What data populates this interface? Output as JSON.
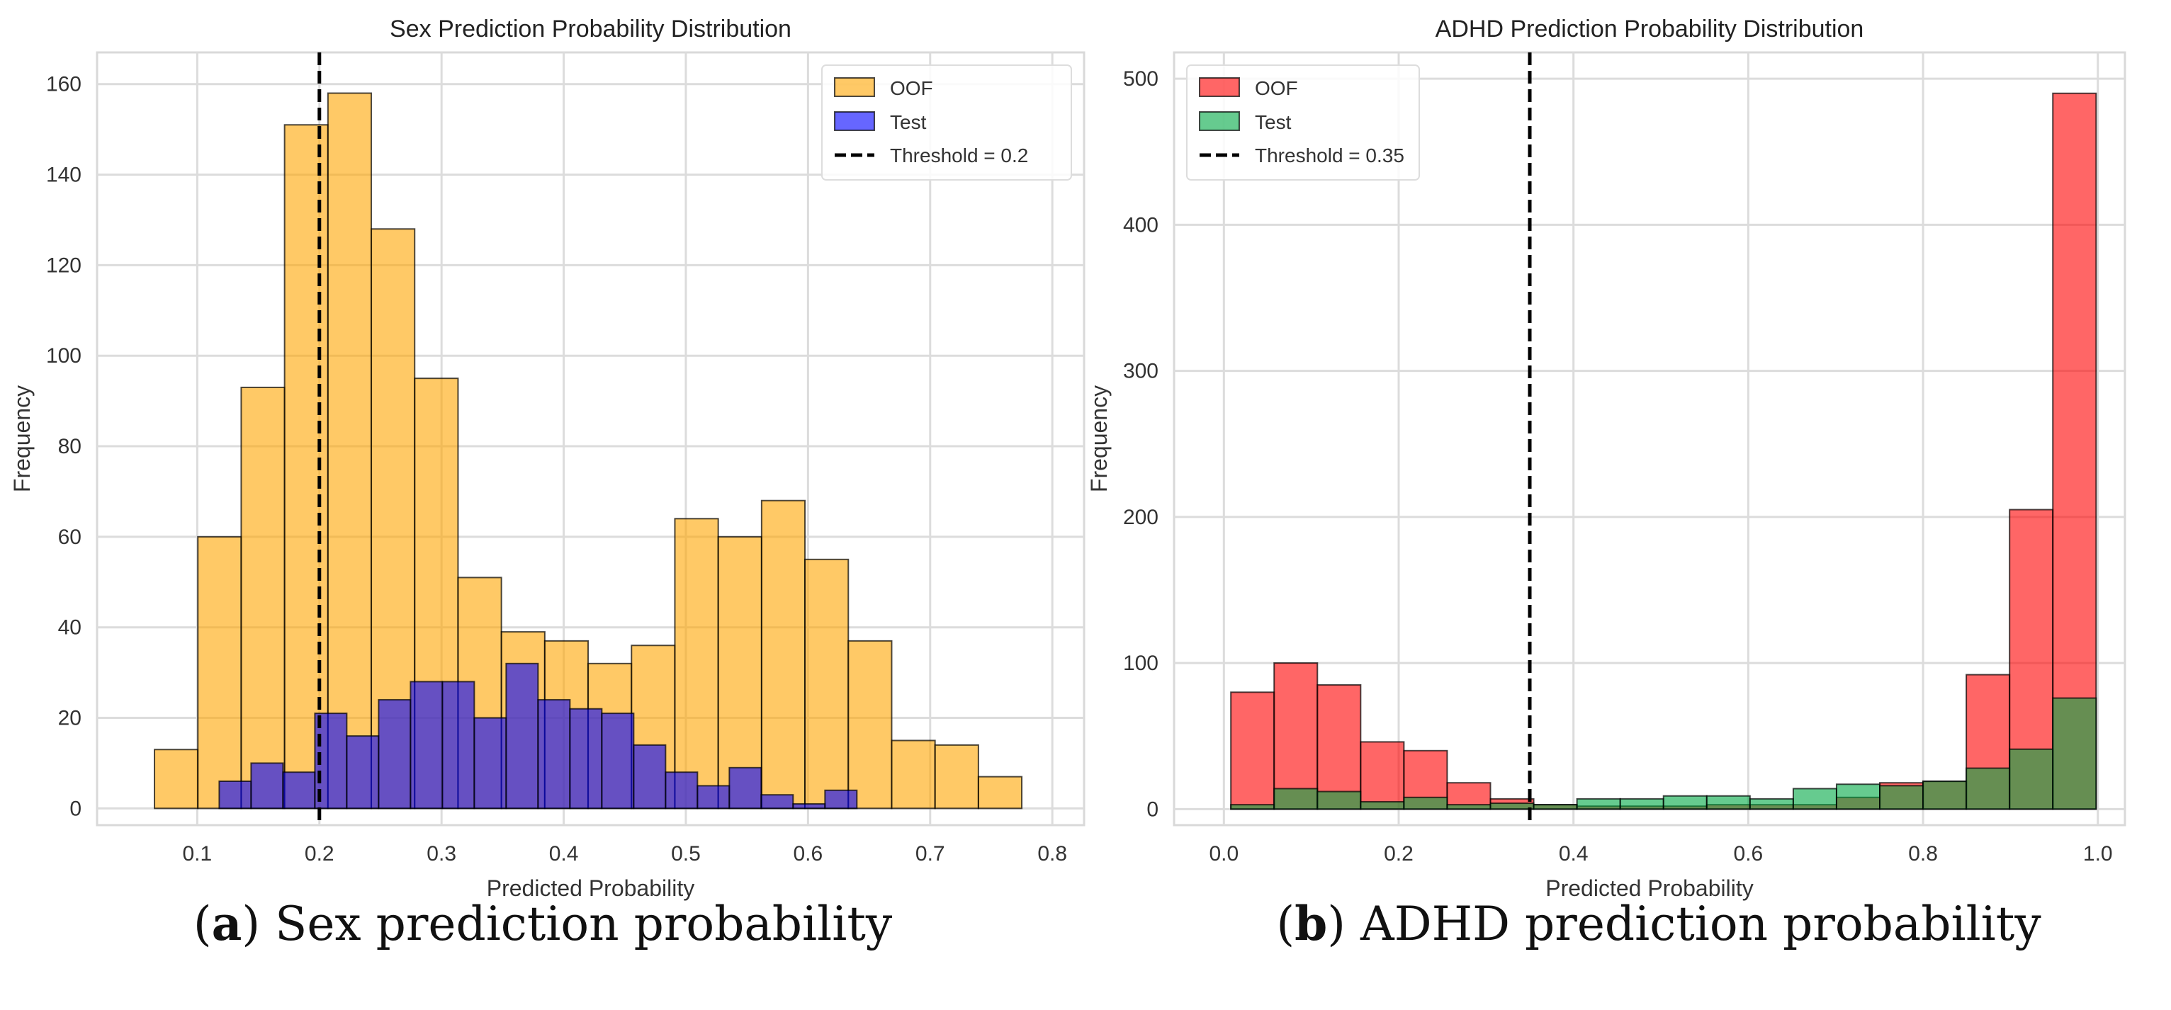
{
  "chart_data": [
    {
      "type": "bar",
      "subtype": "histogram",
      "title": "Sex Prediction Probability Distribution",
      "xlabel": "Predicted Probability",
      "ylabel": "Frequency",
      "xlim": [
        0.018,
        0.826
      ],
      "ylim": [
        -3.7,
        167
      ],
      "xticks": [
        "0.1",
        "0.2",
        "0.3",
        "0.4",
        "0.5",
        "0.6",
        "0.7",
        "0.8"
      ],
      "xtick_values": [
        0.1,
        0.2,
        0.3,
        0.4,
        0.5,
        0.6,
        0.7,
        0.8
      ],
      "yticks": [
        "0",
        "20",
        "40",
        "60",
        "80",
        "100",
        "120",
        "140",
        "160"
      ],
      "ytick_values": [
        0,
        20,
        40,
        60,
        80,
        100,
        120,
        140,
        160
      ],
      "grid": true,
      "legend_position": "top-right",
      "threshold": {
        "value": 0.2,
        "label": "Threshold = 0.2"
      },
      "series": [
        {
          "name": "OOF",
          "color": "#ffa500",
          "bin_start": 0.065,
          "bin_end": 0.775,
          "values": [
            13,
            60,
            93,
            151,
            158,
            128,
            95,
            51,
            39,
            37,
            32,
            36,
            64,
            60,
            68,
            55,
            37,
            15,
            14,
            7
          ]
        },
        {
          "name": "Test",
          "color": "#0000ff",
          "bin_start": 0.118,
          "bin_end": 0.64,
          "values": [
            6,
            10,
            8,
            21,
            16,
            24,
            28,
            28,
            20,
            32,
            24,
            22,
            21,
            14,
            8,
            5,
            9,
            3,
            1,
            4
          ]
        }
      ]
    },
    {
      "type": "bar",
      "subtype": "histogram",
      "title": "ADHD Prediction Probability Distribution",
      "xlabel": "Predicted Probability",
      "ylabel": "Frequency",
      "xlim": [
        -0.057,
        1.031
      ],
      "ylim": [
        -11,
        518
      ],
      "xticks": [
        "0.0",
        "0.2",
        "0.4",
        "0.6",
        "0.8",
        "1.0"
      ],
      "xtick_values": [
        0,
        0.2,
        0.4,
        0.6,
        0.8,
        1.0
      ],
      "yticks": [
        "0",
        "100",
        "200",
        "300",
        "400",
        "500"
      ],
      "ytick_values": [
        0,
        100,
        200,
        300,
        400,
        500
      ],
      "grid": true,
      "legend_position": "top-left",
      "threshold": {
        "value": 0.35,
        "label": "Threshold = 0.35"
      },
      "series": [
        {
          "name": "OOF",
          "color": "#ff0000",
          "bin_start": 0.008,
          "bin_end": 0.998,
          "values": [
            80,
            100,
            85,
            46,
            40,
            18,
            7,
            3,
            2,
            2,
            2,
            3,
            3,
            3,
            8,
            18,
            19,
            92,
            205,
            490
          ]
        },
        {
          "name": "Test",
          "color": "#00a845",
          "bin_start": 0.008,
          "bin_end": 0.998,
          "values": [
            3,
            14,
            12,
            5,
            8,
            3,
            4,
            3,
            7,
            7,
            9,
            9,
            7,
            14,
            17,
            16,
            19,
            28,
            41,
            76
          ]
        }
      ]
    }
  ],
  "captions": [
    {
      "letter": "a",
      "text": " Sex prediction probability"
    },
    {
      "letter": "b",
      "text": " ADHD prediction probability"
    }
  ]
}
